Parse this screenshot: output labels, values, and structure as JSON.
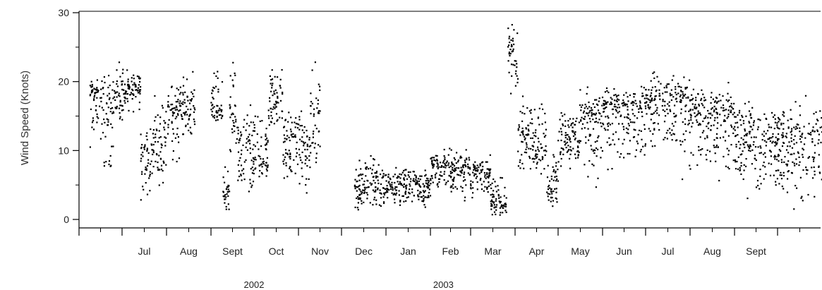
{
  "chart_data": {
    "type": "scatter",
    "title": "",
    "ylabel": "Wind Speed (Knots)",
    "xlabel": "",
    "ylim": [
      0,
      30
    ],
    "y_ticks": [
      "0",
      "10",
      "20",
      "30"
    ],
    "grid": false,
    "legend": "none",
    "marker_color": "#000000",
    "x_range": [
      "2002-06-01",
      "2003-10-31"
    ],
    "month_ticks": [
      "Jul",
      "Aug",
      "Sept",
      "Oct",
      "Nov",
      "Dec",
      "Jan",
      "Feb",
      "Mar",
      "Apr",
      "May",
      "Jun",
      "Jul",
      "Aug",
      "Sept"
    ],
    "year_labels": [
      "2002",
      "2003"
    ],
    "daily_wind_speed": [
      {
        "start": "2002-06-08",
        "end": "2002-06-15",
        "range": [
          8,
          21
        ],
        "center": 18
      },
      {
        "start": "2002-06-16",
        "end": "2002-06-24",
        "range": [
          4,
          23
        ],
        "center": 16
      },
      {
        "start": "2002-06-25",
        "end": "2002-07-02",
        "range": [
          12,
          24
        ],
        "center": 18
      },
      {
        "start": "2002-07-03",
        "end": "2002-07-13",
        "range": [
          15,
          23
        ],
        "center": 19
      },
      {
        "start": "2002-07-14",
        "end": "2002-07-20",
        "range": [
          0.5,
          16
        ],
        "center": 8
      },
      {
        "start": "2002-07-21",
        "end": "2002-07-31",
        "range": [
          4,
          20
        ],
        "center": 11
      },
      {
        "start": "2002-08-01",
        "end": "2002-08-10",
        "range": [
          6,
          21
        ],
        "center": 16
      },
      {
        "start": "2002-08-11",
        "end": "2002-08-20",
        "range": [
          11,
          23
        ],
        "center": 16
      },
      {
        "start": "2002-09-01",
        "end": "2002-09-08",
        "range": [
          13,
          23
        ],
        "center": 16
      },
      {
        "start": "2002-09-09",
        "end": "2002-09-13",
        "range": [
          0.5,
          9
        ],
        "center": 4
      },
      {
        "start": "2002-09-14",
        "end": "2002-09-18",
        "range": [
          5,
          24
        ],
        "center": 15
      },
      {
        "start": "2002-09-19",
        "end": "2002-09-30",
        "range": [
          1,
          19
        ],
        "center": 9
      },
      {
        "start": "2002-10-01",
        "end": "2002-10-10",
        "range": [
          3,
          17
        ],
        "center": 9
      },
      {
        "start": "2002-10-11",
        "end": "2002-10-20",
        "range": [
          10,
          24
        ],
        "center": 17
      },
      {
        "start": "2002-10-21",
        "end": "2002-10-31",
        "range": [
          3,
          18
        ],
        "center": 11
      },
      {
        "start": "2002-11-01",
        "end": "2002-11-08",
        "range": [
          1,
          18
        ],
        "center": 10
      },
      {
        "start": "2002-11-09",
        "end": "2002-11-15",
        "range": [
          2,
          24
        ],
        "center": 15
      },
      {
        "start": "2002-12-10",
        "end": "2002-12-31",
        "range": [
          0,
          10
        ],
        "center": 5
      },
      {
        "start": "2003-01-01",
        "end": "2003-01-31",
        "range": [
          0.5,
          8.5
        ],
        "center": 5
      },
      {
        "start": "2003-02-01",
        "end": "2003-02-28",
        "range": [
          2,
          11
        ],
        "center": 7.5
      },
      {
        "start": "2003-03-01",
        "end": "2003-03-14",
        "range": [
          2,
          10
        ],
        "center": 6.5
      },
      {
        "start": "2003-03-15",
        "end": "2003-03-25",
        "range": [
          0,
          7
        ],
        "center": 2.5
      },
      {
        "start": "2003-03-27",
        "end": "2003-04-02",
        "range": [
          16,
          30
        ],
        "center": 24
      },
      {
        "start": "2003-04-03",
        "end": "2003-04-12",
        "range": [
          4,
          20
        ],
        "center": 12
      },
      {
        "start": "2003-04-13",
        "end": "2003-04-22",
        "range": [
          6,
          19
        ],
        "center": 11
      },
      {
        "start": "2003-04-23",
        "end": "2003-04-30",
        "range": [
          0.5,
          14
        ],
        "center": 5
      },
      {
        "start": "2003-05-01",
        "end": "2003-05-15",
        "range": [
          6,
          17
        ],
        "center": 12
      },
      {
        "start": "2003-05-16",
        "end": "2003-05-31",
        "range": [
          1,
          20
        ],
        "center": 14
      },
      {
        "start": "2003-06-01",
        "end": "2003-06-30",
        "range": [
          5,
          20
        ],
        "center": 16
      },
      {
        "start": "2003-07-01",
        "end": "2003-07-15",
        "range": [
          8,
          23
        ],
        "center": 17
      },
      {
        "start": "2003-07-16",
        "end": "2003-07-31",
        "range": [
          4,
          23
        ],
        "center": 17
      },
      {
        "start": "2003-08-01",
        "end": "2003-08-31",
        "range": [
          3,
          21
        ],
        "center": 15
      },
      {
        "start": "2003-09-01",
        "end": "2003-09-20",
        "range": [
          1,
          18
        ],
        "center": 12
      },
      {
        "start": "2003-09-21",
        "end": "2003-10-31",
        "range": [
          0,
          19
        ],
        "center": 11
      }
    ]
  }
}
